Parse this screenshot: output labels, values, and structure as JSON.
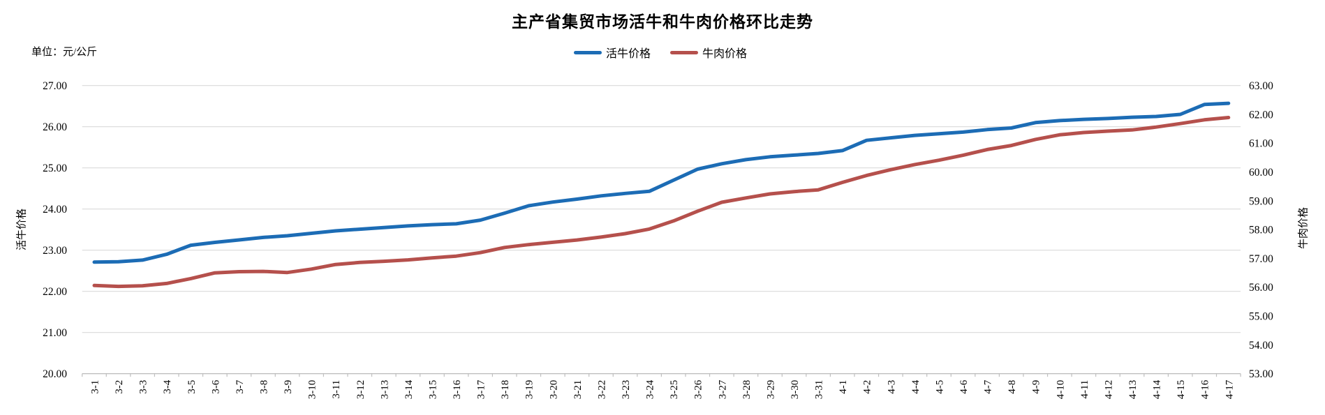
{
  "header": {
    "title": "主产省集贸市场活牛和牛肉价格环比走势",
    "unit_label": "单位：元/公斤"
  },
  "chart_data": {
    "type": "line",
    "title": "主产省集贸市场活牛和牛肉价格环比走势",
    "unit": "元/公斤",
    "legend_position": "top",
    "grid": true,
    "categories": [
      "3-1",
      "3-2",
      "3-3",
      "3-4",
      "3-5",
      "3-6",
      "3-7",
      "3-8",
      "3-9",
      "3-10",
      "3-11",
      "3-12",
      "3-13",
      "3-14",
      "3-15",
      "3-16",
      "3-17",
      "3-18",
      "3-19",
      "3-20",
      "3-21",
      "3-22",
      "3-23",
      "3-24",
      "3-25",
      "3-26",
      "3-27",
      "3-28",
      "3-29",
      "3-30",
      "3-31",
      "4-1",
      "4-2",
      "4-3",
      "4-4",
      "4-5",
      "4-6",
      "4-7",
      "4-8",
      "4-9",
      "4-10",
      "4-11",
      "4-12",
      "4-13",
      "4-14",
      "4-15",
      "4-16",
      "4-17"
    ],
    "series": [
      {
        "name": "活牛价格",
        "axis": "left",
        "color": "#1C6CB5",
        "values": [
          22.71,
          22.72,
          22.76,
          22.9,
          23.12,
          23.19,
          23.25,
          23.31,
          23.35,
          23.41,
          23.47,
          23.51,
          23.55,
          23.59,
          23.62,
          23.64,
          23.73,
          23.9,
          24.08,
          24.17,
          24.24,
          24.32,
          24.38,
          24.43,
          24.7,
          24.97,
          25.1,
          25.2,
          25.27,
          25.31,
          25.35,
          25.42,
          25.67,
          25.73,
          25.79,
          25.83,
          25.87,
          25.93,
          25.97,
          26.1,
          26.15,
          26.18,
          26.2,
          26.23,
          26.25,
          26.3,
          26.54,
          26.57
        ]
      },
      {
        "name": "牛肉价格",
        "axis": "right",
        "color": "#B5504C",
        "values": [
          56.06,
          56.03,
          56.05,
          56.13,
          56.3,
          56.5,
          56.54,
          56.55,
          56.51,
          56.63,
          56.79,
          56.86,
          56.9,
          56.95,
          57.02,
          57.08,
          57.2,
          57.38,
          57.48,
          57.56,
          57.64,
          57.74,
          57.86,
          58.02,
          58.3,
          58.64,
          58.95,
          59.1,
          59.24,
          59.32,
          59.38,
          59.64,
          59.88,
          60.08,
          60.26,
          60.41,
          60.58,
          60.78,
          60.92,
          61.13,
          61.29,
          61.37,
          61.42,
          61.46,
          61.56,
          61.68,
          61.81,
          61.89
        ]
      }
    ],
    "left_axis": {
      "title": "活牛价格",
      "min": 20,
      "max": 27,
      "step": 1,
      "tick_labels": [
        "27.00",
        "26.00",
        "25.00",
        "24.00",
        "23.00",
        "22.00",
        "21.00",
        "20.00"
      ]
    },
    "right_axis": {
      "title": "牛肉价格",
      "min": 53,
      "max": 63,
      "step": 1,
      "tick_labels": [
        "63.00",
        "62.00",
        "61.00",
        "60.00",
        "59.00",
        "58.00",
        "57.00",
        "56.00",
        "55.00",
        "54.00",
        "53.00"
      ]
    }
  },
  "colors": {
    "gridline": "#D9D9D9",
    "axis_line": "#BFBFBF",
    "text": "#000000",
    "background": "#FFFFFF"
  }
}
